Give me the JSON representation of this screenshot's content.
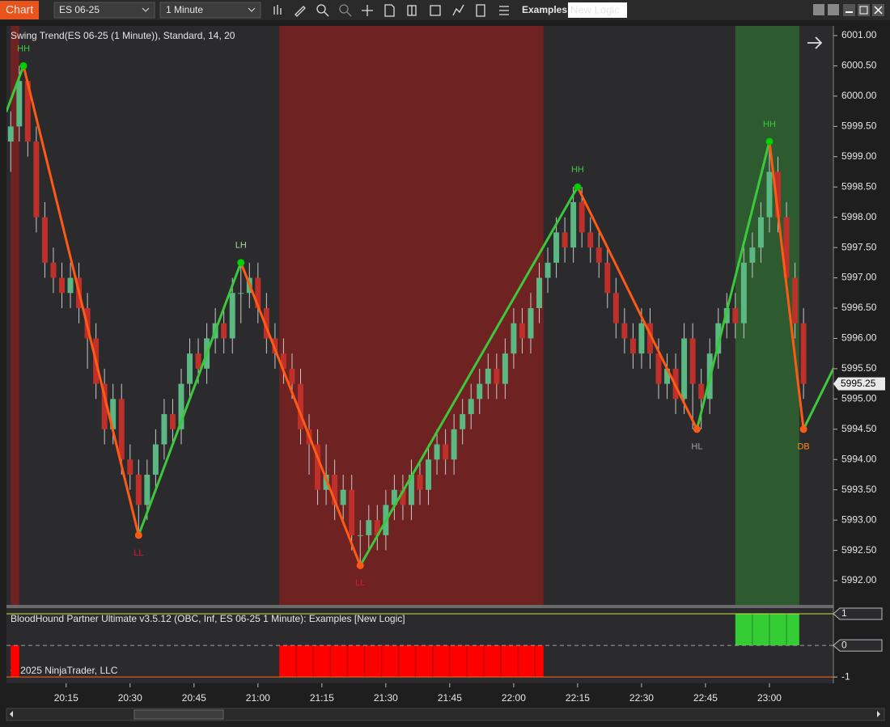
{
  "toolbar": {
    "tab": "Chart",
    "instrument": "ES 06-25",
    "interval": "1 Minute",
    "template_label": "Examples",
    "template_value": "New Logic"
  },
  "chart_data": {
    "type": "candlestick",
    "title": "Swing Trend(ES 06-25 (1 Minute)), Standard, 14, 20",
    "copyright": "© 2025 NinjaTrader, LLC",
    "up_color": "#5cb882",
    "down_color": "#c0302a",
    "xlim": [
      "20:01",
      "23:15"
    ],
    "xticks": [
      "20:15",
      "20:30",
      "20:45",
      "21:00",
      "21:15",
      "21:30",
      "21:45",
      "22:00",
      "22:15",
      "22:30",
      "22:45",
      "23:00"
    ],
    "ylim": [
      5991.6,
      6001.16
    ],
    "yticks": [
      {
        "value": 6001,
        "label": "6001.00"
      },
      {
        "value": 6000.5,
        "label": "6000.50"
      },
      {
        "value": 6000,
        "label": "6000.00"
      },
      {
        "value": 5999.5,
        "label": "5999.50"
      },
      {
        "value": 5999,
        "label": "5999.00"
      },
      {
        "value": 5998.5,
        "label": "5998.50"
      },
      {
        "value": 5998,
        "label": "5998.00"
      },
      {
        "value": 5997.5,
        "label": "5997.50"
      },
      {
        "value": 5997,
        "label": "5997.00"
      },
      {
        "value": 5996.5,
        "label": "5996.50"
      },
      {
        "value": 5996,
        "label": "5996.00"
      },
      {
        "value": 5995.5,
        "label": "5995.50"
      },
      {
        "value": 5995,
        "label": "5995.00"
      },
      {
        "value": 5994.5,
        "label": "5994.50"
      },
      {
        "value": 5994,
        "label": "5994.00"
      },
      {
        "value": 5993.5,
        "label": "5993.50"
      },
      {
        "value": 5993,
        "label": "5993.00"
      },
      {
        "value": 5992.5,
        "label": "5992.50"
      },
      {
        "value": 5992,
        "label": "5992.00"
      }
    ],
    "last_price": 5995.25,
    "regions": [
      {
        "start": "20:02",
        "end": "20:04",
        "color": "#6e2222"
      },
      {
        "start": "21:05",
        "end": "22:07",
        "color": "#6e2222"
      },
      {
        "start": "22:52",
        "end": "23:07",
        "color": "#2e5a30"
      }
    ],
    "candles": [
      [
        "20:02",
        5999.25,
        5999.75,
        5998.75,
        5999.5
      ],
      [
        "20:04",
        5999.5,
        6000.5,
        5999.25,
        6000.25
      ],
      [
        "20:06",
        6000.25,
        6000.25,
        5999.0,
        5999.25
      ],
      [
        "20:08",
        5999.25,
        5999.5,
        5997.75,
        5998.0
      ],
      [
        "20:10",
        5998.0,
        5998.25,
        5997.0,
        5997.25
      ],
      [
        "20:12",
        5997.25,
        5997.5,
        5996.75,
        5997.0
      ],
      [
        "20:14",
        5997.0,
        5997.25,
        5996.5,
        5996.75
      ],
      [
        "20:16",
        5996.75,
        5997.25,
        5996.5,
        5997.0
      ],
      [
        "20:18",
        5997.0,
        5997.25,
        5996.25,
        5996.5
      ],
      [
        "20:20",
        5996.5,
        5996.75,
        5995.5,
        5996.0
      ],
      [
        "20:22",
        5996.0,
        5996.25,
        5995.0,
        5995.25
      ],
      [
        "20:24",
        5995.25,
        5995.5,
        5994.25,
        5994.5
      ],
      [
        "20:26",
        5994.5,
        5995.25,
        5994.25,
        5995.0
      ],
      [
        "20:28",
        5995.0,
        5995.25,
        5993.75,
        5994.0
      ],
      [
        "20:30",
        5994.0,
        5994.25,
        5993.5,
        5993.75
      ],
      [
        "20:32",
        5993.75,
        5994.0,
        5992.75,
        5993.25
      ],
      [
        "20:34",
        5993.25,
        5994.0,
        5993.0,
        5993.75
      ],
      [
        "20:36",
        5993.75,
        5994.5,
        5993.5,
        5994.25
      ],
      [
        "20:38",
        5994.25,
        5995.0,
        5994.0,
        5994.75
      ],
      [
        "20:40",
        5994.75,
        5995.0,
        5994.25,
        5994.5
      ],
      [
        "20:42",
        5994.5,
        5995.5,
        5994.25,
        5995.25
      ],
      [
        "20:44",
        5995.25,
        5996.0,
        5995.0,
        5995.75
      ],
      [
        "20:46",
        5995.75,
        5996.0,
        5995.25,
        5995.5
      ],
      [
        "20:48",
        5995.5,
        5996.25,
        5995.25,
        5996.0
      ],
      [
        "20:50",
        5996.0,
        5996.5,
        5995.75,
        5996.25
      ],
      [
        "20:52",
        5996.25,
        5996.5,
        5995.75,
        5996.0
      ],
      [
        "20:54",
        5996.0,
        5997.0,
        5995.75,
        5996.75
      ],
      [
        "20:56",
        5996.75,
        5997.25,
        5996.25,
        5996.75
      ],
      [
        "20:58",
        5996.75,
        5997.25,
        5996.5,
        5997.0
      ],
      [
        "21:00",
        5997.0,
        5997.25,
        5996.25,
        5996.5
      ],
      [
        "21:02",
        5996.5,
        5996.75,
        5995.75,
        5996.0
      ],
      [
        "21:04",
        5996.0,
        5996.25,
        5995.5,
        5995.75
      ],
      [
        "21:06",
        5995.75,
        5996.0,
        5995.25,
        5995.5
      ],
      [
        "21:08",
        5995.5,
        5995.75,
        5995.0,
        5995.25
      ],
      [
        "21:10",
        5995.25,
        5995.5,
        5994.25,
        5994.5
      ],
      [
        "21:12",
        5994.5,
        5994.75,
        5993.75,
        5994.25
      ],
      [
        "21:14",
        5994.25,
        5994.5,
        5993.25,
        5993.5
      ],
      [
        "21:16",
        5993.5,
        5994.25,
        5993.25,
        5993.75
      ],
      [
        "21:18",
        5993.75,
        5994.0,
        5993.0,
        5993.25
      ],
      [
        "21:20",
        5993.25,
        5993.75,
        5993.0,
        5993.5
      ],
      [
        "21:22",
        5993.5,
        5993.75,
        5992.5,
        5992.75
      ],
      [
        "21:24",
        5992.75,
        5993.0,
        5992.25,
        5992.75
      ],
      [
        "21:26",
        5992.75,
        5993.25,
        5992.5,
        5993.0
      ],
      [
        "21:28",
        5993.0,
        5993.25,
        5992.5,
        5992.75
      ],
      [
        "21:30",
        5992.75,
        5993.5,
        5992.5,
        5993.25
      ],
      [
        "21:32",
        5993.25,
        5993.75,
        5993.0,
        5993.5
      ],
      [
        "21:34",
        5993.5,
        5993.75,
        5993.0,
        5993.25
      ],
      [
        "21:36",
        5993.25,
        5994.0,
        5993.0,
        5993.75
      ],
      [
        "21:38",
        5993.75,
        5994.0,
        5993.25,
        5993.5
      ],
      [
        "21:40",
        5993.5,
        5994.25,
        5993.25,
        5994.0
      ],
      [
        "21:42",
        5994.0,
        5994.5,
        5993.75,
        5994.25
      ],
      [
        "21:44",
        5994.25,
        5994.5,
        5993.75,
        5994.0
      ],
      [
        "21:46",
        5994.0,
        5994.75,
        5993.75,
        5994.5
      ],
      [
        "21:48",
        5994.5,
        5995.0,
        5994.25,
        5994.75
      ],
      [
        "21:50",
        5994.75,
        5995.25,
        5994.5,
        5995.0
      ],
      [
        "21:52",
        5995.0,
        5995.5,
        5994.75,
        5995.25
      ],
      [
        "21:54",
        5995.25,
        5995.75,
        5995.0,
        5995.5
      ],
      [
        "21:56",
        5995.5,
        5995.75,
        5995.0,
        5995.25
      ],
      [
        "21:58",
        5995.25,
        5996.0,
        5995.0,
        5995.75
      ],
      [
        "22:00",
        5995.75,
        5996.5,
        5995.5,
        5996.25
      ],
      [
        "22:02",
        5996.25,
        5996.5,
        5995.75,
        5996.0
      ],
      [
        "22:04",
        5996.0,
        5996.75,
        5995.75,
        5996.5
      ],
      [
        "22:06",
        5996.5,
        5997.25,
        5996.25,
        5997.0
      ],
      [
        "22:08",
        5997.0,
        5997.5,
        5996.75,
        5997.25
      ],
      [
        "22:10",
        5997.25,
        5998.0,
        5997.0,
        5997.75
      ],
      [
        "22:12",
        5997.75,
        5998.0,
        5997.25,
        5997.5
      ],
      [
        "22:14",
        5997.5,
        5998.5,
        5997.25,
        5998.25
      ],
      [
        "22:16",
        5998.25,
        5998.5,
        5997.5,
        5997.75
      ],
      [
        "22:18",
        5997.75,
        5998.0,
        5997.25,
        5997.5
      ],
      [
        "22:20",
        5997.5,
        5997.75,
        5997.0,
        5997.25
      ],
      [
        "22:22",
        5997.25,
        5997.5,
        5996.5,
        5996.75
      ],
      [
        "22:24",
        5996.75,
        5997.0,
        5996.0,
        5996.25
      ],
      [
        "22:26",
        5996.25,
        5996.5,
        5995.75,
        5996.0
      ],
      [
        "22:28",
        5996.0,
        5996.25,
        5995.5,
        5995.75
      ],
      [
        "22:30",
        5995.75,
        5996.5,
        5995.5,
        5996.25
      ],
      [
        "22:32",
        5996.25,
        5996.5,
        5995.5,
        5995.75
      ],
      [
        "22:34",
        5995.75,
        5996.0,
        5995.0,
        5995.25
      ],
      [
        "22:36",
        5995.25,
        5995.75,
        5995.0,
        5995.5
      ],
      [
        "22:38",
        5995.5,
        5995.75,
        5994.75,
        5995.0
      ],
      [
        "22:40",
        5995.0,
        5996.25,
        5994.75,
        5996.0
      ],
      [
        "22:42",
        5996.0,
        5996.25,
        5994.5,
        5995.25
      ],
      [
        "22:44",
        5995.25,
        5995.5,
        5994.5,
        5995.0
      ],
      [
        "22:46",
        5995.0,
        5996.0,
        5994.75,
        5995.75
      ],
      [
        "22:48",
        5995.75,
        5996.5,
        5995.5,
        5996.25
      ],
      [
        "22:50",
        5996.25,
        5996.75,
        5996.0,
        5996.5
      ],
      [
        "22:52",
        5996.5,
        5996.75,
        5996.0,
        5996.25
      ],
      [
        "22:54",
        5996.25,
        5997.5,
        5996.0,
        5997.25
      ],
      [
        "22:56",
        5997.25,
        5997.75,
        5997.0,
        5997.5
      ],
      [
        "22:58",
        5997.5,
        5998.25,
        5997.25,
        5998.0
      ],
      [
        "23:00",
        5998.0,
        5999.25,
        5997.75,
        5998.75
      ],
      [
        "23:02",
        5998.75,
        5999.0,
        5997.75,
        5998.0
      ],
      [
        "23:04",
        5998.0,
        5998.25,
        5996.75,
        5997.0
      ],
      [
        "23:06",
        5997.0,
        5997.25,
        5996.0,
        5996.25
      ],
      [
        "23:08",
        5996.25,
        5996.5,
        5995.0,
        5995.25
      ]
    ],
    "swing": {
      "up_color": "#3cc83c",
      "down_color": "#ff5a14",
      "x": [
        "20:01",
        "20:05",
        "20:32",
        "20:56",
        "21:24",
        "22:15",
        "22:43",
        "23:00",
        "23:08",
        "23:15"
      ],
      "y": [
        5999.75,
        6000.5,
        5992.75,
        5997.25,
        5992.25,
        5998.5,
        5994.5,
        5999.25,
        5994.5,
        5995.5
      ],
      "labels": [
        null,
        "HH",
        "LL",
        "LH",
        "LL",
        "HH",
        "HL",
        "HH",
        "DB",
        null
      ],
      "label_colors": [
        null,
        "#3cc83c",
        "#dc143c",
        "#a8d8a0",
        "#dc143c",
        "#3cc83c",
        "#a0a0a0",
        "#3cc83c",
        "#ff8c14",
        null
      ]
    },
    "indicator": {
      "title": "BloodHound Partner Ultimate v3.5.12 (OBC, Inf, ES 06-25 1 Minute): Examples  [New Logic]",
      "ylim": [
        -1.2,
        1.18
      ],
      "yticks": [
        1,
        0,
        -1
      ],
      "line_colors": [
        "#c8e03c",
        "#a0a0a0",
        "#ff6a14"
      ],
      "bars": [
        {
          "start": "20:02",
          "end": "20:04",
          "value": -1,
          "color": "#ff0000"
        },
        {
          "start": "21:05",
          "end": "22:07",
          "value": -1,
          "color": "#ff0000"
        },
        {
          "start": "22:52",
          "end": "23:07",
          "value": 1,
          "color": "#33cc33"
        }
      ]
    }
  }
}
